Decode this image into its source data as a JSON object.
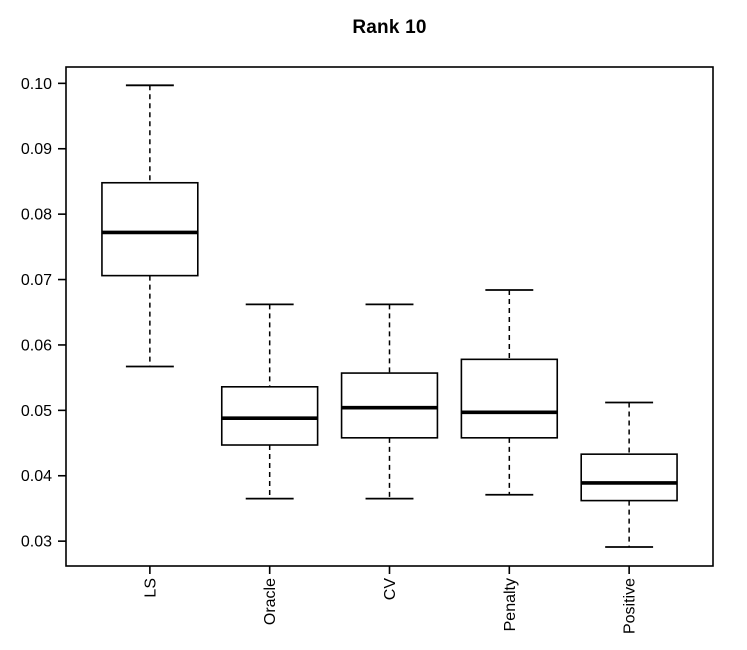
{
  "figure": {
    "title": "Rank 10"
  },
  "chart_data": {
    "type": "boxplot",
    "title": "Rank 10",
    "xlabel": "",
    "ylabel": "",
    "categories": [
      "LS",
      "Oracle",
      "CV",
      "Penalty",
      "Positive"
    ],
    "series": [
      {
        "name": "LS",
        "whisker_low": 0.0567,
        "q1": 0.0706,
        "median": 0.0772,
        "q3": 0.0848,
        "whisker_high": 0.0997
      },
      {
        "name": "Oracle",
        "whisker_low": 0.0365,
        "q1": 0.0447,
        "median": 0.0488,
        "q3": 0.0536,
        "whisker_high": 0.0662
      },
      {
        "name": "CV",
        "whisker_low": 0.0365,
        "q1": 0.0458,
        "median": 0.0504,
        "q3": 0.0557,
        "whisker_high": 0.0662
      },
      {
        "name": "Penalty",
        "whisker_low": 0.0371,
        "q1": 0.0458,
        "median": 0.0497,
        "q3": 0.0578,
        "whisker_high": 0.0684
      },
      {
        "name": "Positive",
        "whisker_low": 0.0291,
        "q1": 0.0362,
        "median": 0.0389,
        "q3": 0.0433,
        "whisker_high": 0.0512
      }
    ],
    "outliers": [],
    "ytick_labels": [
      "0.03",
      "0.04",
      "0.05",
      "0.06",
      "0.07",
      "0.08",
      "0.09",
      "0.10"
    ],
    "ytick_values": [
      0.03,
      0.04,
      0.05,
      0.06,
      0.07,
      0.08,
      0.09,
      0.1
    ],
    "ylim": [
      0.0262,
      0.1025
    ],
    "xlim": [
      0.3,
      5.7
    ],
    "grid": false,
    "legend": "none",
    "styles": {
      "line_color": "#000000",
      "box_fill": "#ffffff",
      "background": "#ffffff",
      "whisker_linestyle": "dashed",
      "box_width": 0.8,
      "cap_width": 0.4
    }
  }
}
